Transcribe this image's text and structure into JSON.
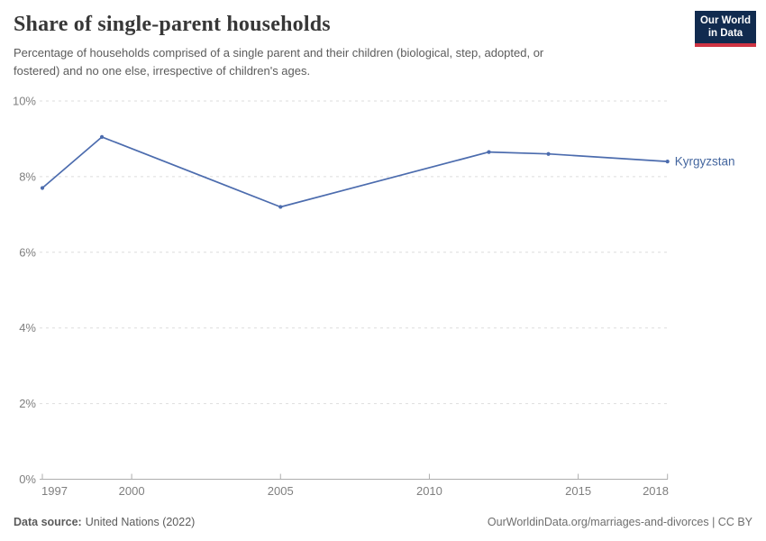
{
  "header": {
    "title": "Share of single-parent households",
    "subtitle": "Percentage of households comprised of a single parent and their children (biological, step, adopted, or\nfostered) and no one else, irrespective of children's ages.",
    "logo": {
      "line1": "Our World",
      "line2": "in Data"
    }
  },
  "chart_data": {
    "type": "line",
    "title": "Share of single-parent households",
    "series": [
      {
        "name": "Kyrgyzstan",
        "points": [
          {
            "year": 1997,
            "value": 7.7
          },
          {
            "year": 1999,
            "value": 9.05
          },
          {
            "year": 2005,
            "value": 7.2
          },
          {
            "year": 2012,
            "value": 8.65
          },
          {
            "year": 2014,
            "value": 8.6
          },
          {
            "year": 2018,
            "value": 8.4
          }
        ]
      }
    ],
    "x_ticks": [
      1997,
      2000,
      2005,
      2010,
      2015,
      2018
    ],
    "y_ticks": [
      0,
      2,
      4,
      6,
      8,
      10
    ],
    "y_tick_suffix": "%",
    "xlim": [
      1997,
      2018
    ],
    "ylim": [
      0,
      10
    ],
    "grid": "horizontal-dashed",
    "legend_position": "end-of-line-label",
    "end_label": "Kyrgyzstan"
  },
  "footer": {
    "source_label": "Data source:",
    "source_value": "United Nations (2022)",
    "attribution": "OurWorldinData.org/marriages-and-divorces | CC BY"
  },
  "colors": {
    "line": "#4C6CAE",
    "entity_label": "#44669f",
    "logo_navy": "#112b4f",
    "logo_red": "#cf3443",
    "grid": "#dddddd",
    "axis": "#aeaeae",
    "tick_text": "#7f7f7f",
    "title_text": "#373737",
    "body_text": "#5b5b5b"
  }
}
